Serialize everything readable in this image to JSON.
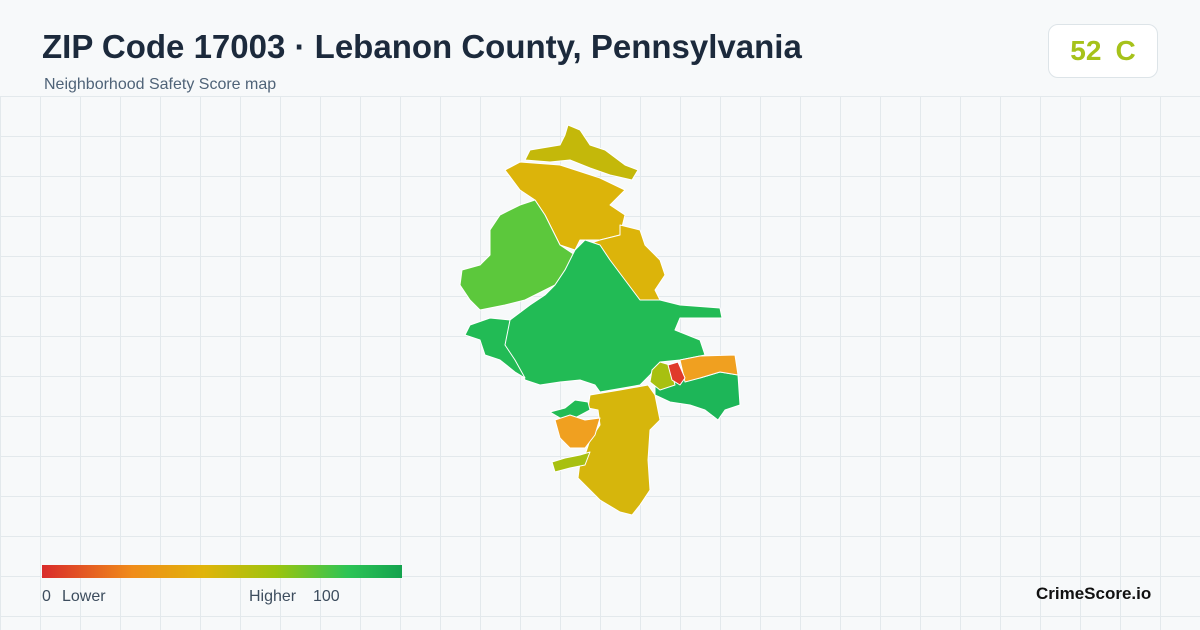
{
  "header": {
    "title": "ZIP Code 17003 · Lebanon County, Pennsylvania",
    "subtitle": "Neighborhood Safety Score map"
  },
  "score": {
    "value": 52,
    "grade": "C"
  },
  "legend": {
    "min_label": "0",
    "low_label": "Lower",
    "high_label": "Higher",
    "max_label": "100"
  },
  "brand": "CrimeScore.io"
}
